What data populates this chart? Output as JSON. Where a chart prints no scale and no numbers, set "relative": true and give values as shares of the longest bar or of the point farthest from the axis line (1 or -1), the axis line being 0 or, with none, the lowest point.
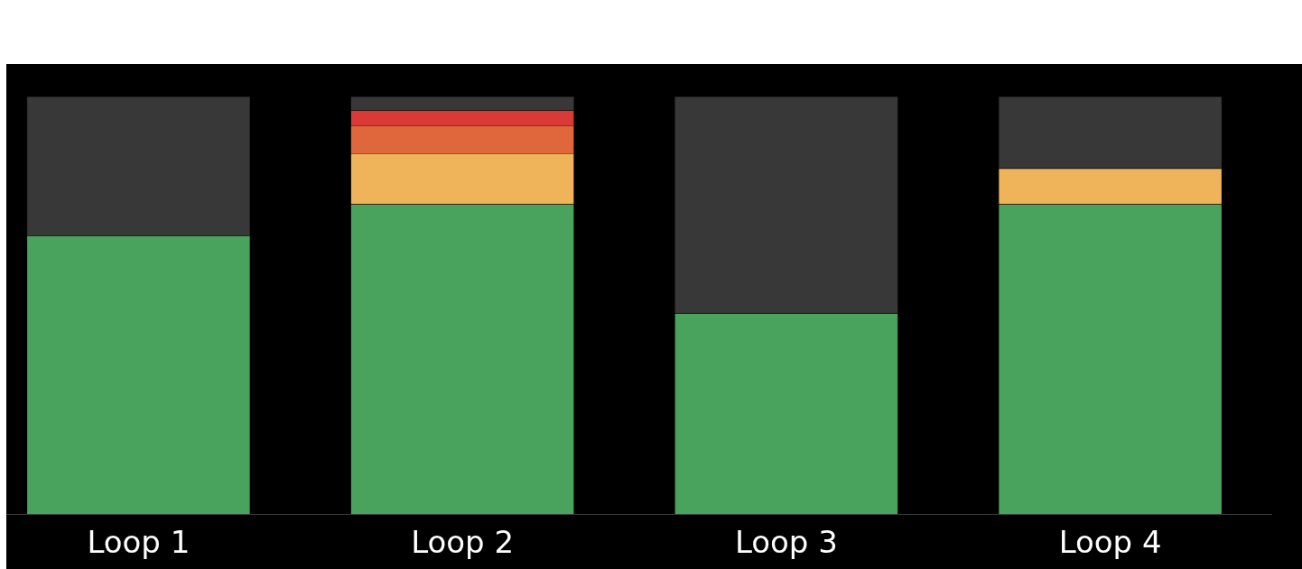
{
  "chart_data": {
    "type": "bar",
    "stacked": true,
    "relative": true,
    "legend": false,
    "grid": false,
    "categories": [
      "Loop 1",
      "Loop 2",
      "Loop 3",
      "Loop 4"
    ],
    "series": [
      {
        "color": "#4aa35c",
        "values": [
          0.667,
          0.742,
          0.481,
          0.742
        ]
      },
      {
        "color": "#efb35a",
        "values": [
          null,
          0.122,
          null,
          0.086
        ]
      },
      {
        "color": "#e0673c",
        "values": [
          null,
          0.067,
          null,
          null
        ]
      },
      {
        "color": "#d93a35",
        "values": [
          null,
          0.036,
          null,
          null
        ]
      },
      {
        "color": "#383838",
        "values": [
          0.333,
          0.033,
          0.519,
          0.172
        ]
      }
    ]
  }
}
